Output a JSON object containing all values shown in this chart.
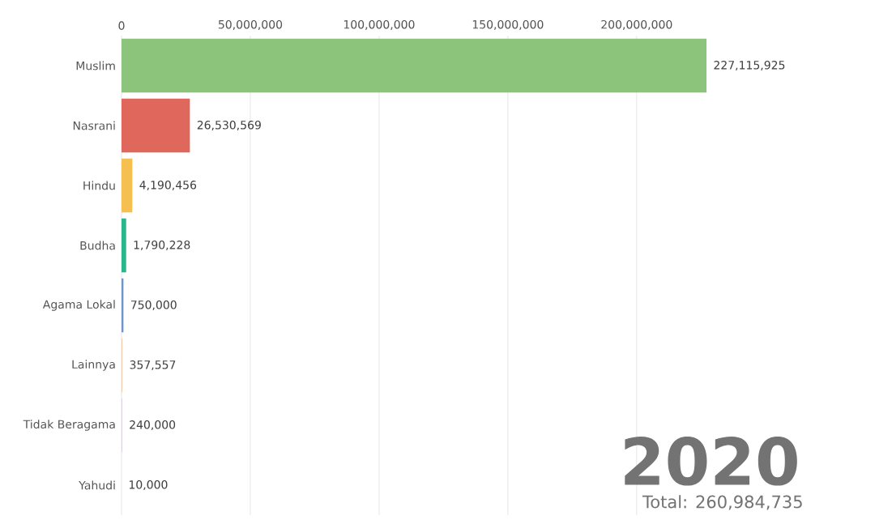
{
  "chart_data": {
    "type": "bar",
    "orientation": "horizontal",
    "categories": [
      "Muslim",
      "Nasrani",
      "Hindu",
      "Budha",
      "Agama Lokal",
      "Lainnya",
      "Tidak Beragama",
      "Yahudi"
    ],
    "values": [
      227115925,
      26530569,
      4190456,
      1790228,
      750000,
      357557,
      240000,
      10000
    ],
    "value_labels": [
      "227,115,925",
      "26,530,569",
      "4,190,456",
      "1,790,228",
      "750,000",
      "357,557",
      "240,000",
      "10,000"
    ],
    "colors": [
      "#8bc47a",
      "#e0675c",
      "#f5c04f",
      "#2bb58a",
      "#6f95c8",
      "#f2cfb0",
      "#d8cde0",
      "#e8e8e8"
    ],
    "xticks": [
      {
        "value": 0,
        "label": "0"
      },
      {
        "value": 50000000,
        "label": "50,000,000"
      },
      {
        "value": 100000000,
        "label": "100,000,000"
      },
      {
        "value": 150000000,
        "label": "150,000,000"
      },
      {
        "value": 200000000,
        "label": "200,000,000"
      }
    ],
    "xlim": [
      0,
      227115925
    ],
    "grid": "x",
    "annotations": [
      "2020",
      "Total: 260,984,735"
    ]
  }
}
